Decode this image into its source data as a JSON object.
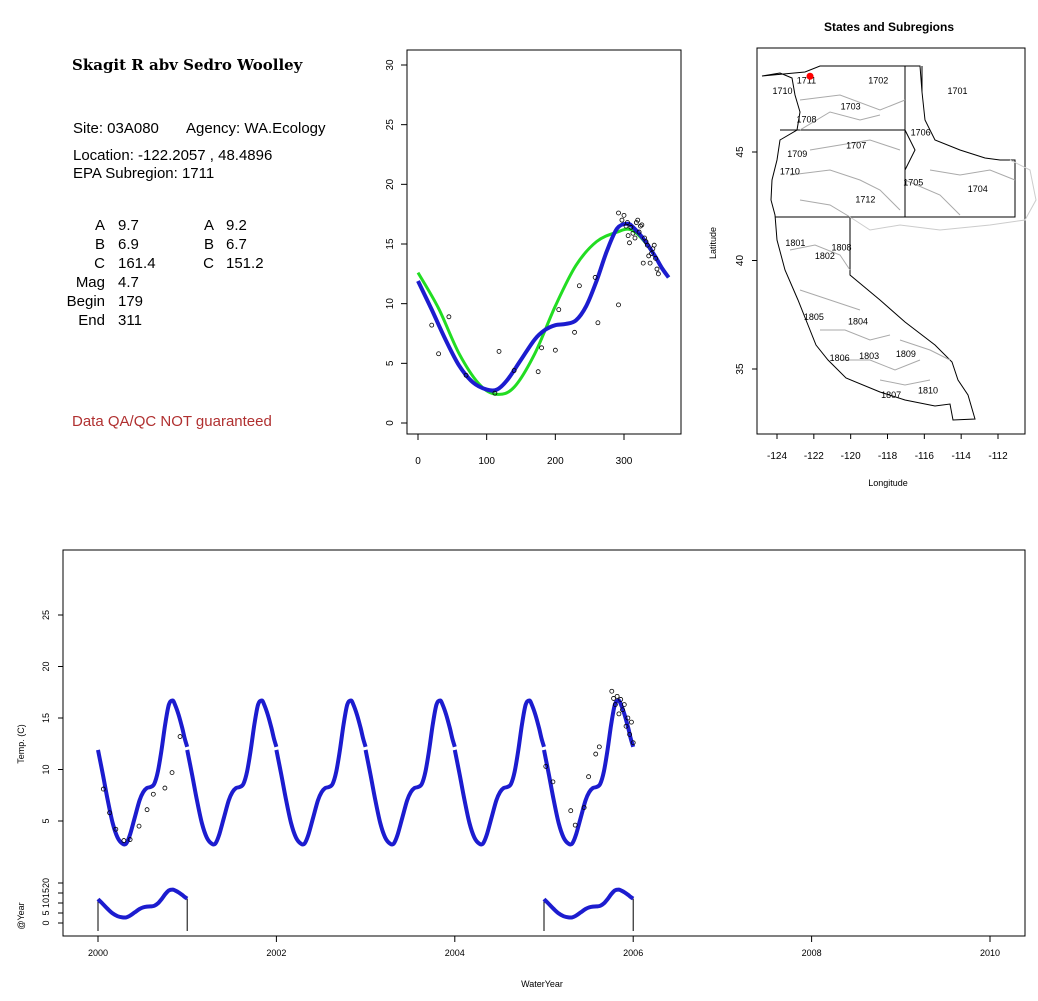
{
  "site": {
    "name": "Skagit R abv Sedro Woolley",
    "site_label": "Site: 03A080",
    "agency_label": "Agency: WA.Ecology",
    "location_label": "Location: -122.2057 , 48.4896",
    "subregion_label": "EPA Subregion: 1711"
  },
  "params": {
    "left": [
      {
        "label": "A",
        "value": "9.7"
      },
      {
        "label": "B",
        "value": "6.9"
      },
      {
        "label": "C",
        "value": "161.4"
      },
      {
        "label": "Mag",
        "value": "4.7"
      },
      {
        "label": "Begin",
        "value": "179"
      },
      {
        "label": "End",
        "value": "311"
      }
    ],
    "right": [
      {
        "label": "A",
        "value": "9.2"
      },
      {
        "label": "B",
        "value": "6.7"
      },
      {
        "label": "C",
        "value": "151.2"
      }
    ]
  },
  "qa_notice": "Data QA/QC NOT guaranteed",
  "colors": {
    "blue_fit": "#1c1ccf",
    "green_fit": "#22dd22",
    "qa_text": "#b03030",
    "station": "#ff0000"
  },
  "chart_data": [
    {
      "type": "scatter",
      "title": "",
      "xlim": [
        0,
        365
      ],
      "ylim": [
        0,
        30
      ],
      "xticks": [
        0,
        100,
        200,
        300
      ],
      "yticks": [
        0,
        5,
        10,
        15,
        20,
        25,
        30
      ],
      "points": [
        [
          20,
          8.2
        ],
        [
          30,
          5.8
        ],
        [
          45,
          8.9
        ],
        [
          70,
          4.0
        ],
        [
          112,
          2.5
        ],
        [
          118,
          6.0
        ],
        [
          140,
          4.4
        ],
        [
          175,
          4.3
        ],
        [
          180,
          6.3
        ],
        [
          200,
          6.1
        ],
        [
          205,
          9.5
        ],
        [
          228,
          7.6
        ],
        [
          235,
          11.5
        ],
        [
          258,
          12.2
        ],
        [
          262,
          8.4
        ],
        [
          292,
          9.9
        ],
        [
          292,
          17.6
        ],
        [
          297,
          17.0
        ],
        [
          300,
          17.4
        ],
        [
          303,
          16.5
        ],
        [
          305,
          16.8
        ],
        [
          306,
          15.7
        ],
        [
          308,
          15.1
        ],
        [
          310,
          16.4
        ],
        [
          313,
          15.9
        ],
        [
          316,
          15.5
        ],
        [
          318,
          16.8
        ],
        [
          320,
          17.0
        ],
        [
          322,
          16.0
        ],
        [
          324,
          16.5
        ],
        [
          326,
          16.6
        ],
        [
          328,
          13.4
        ],
        [
          330,
          15.5
        ],
        [
          332,
          15.2
        ],
        [
          334,
          14.9
        ],
        [
          336,
          14.0
        ],
        [
          338,
          13.4
        ],
        [
          340,
          14.2
        ],
        [
          342,
          14.6
        ],
        [
          344,
          14.9
        ],
        [
          346,
          13.8
        ],
        [
          348,
          12.9
        ],
        [
          350,
          12.5
        ]
      ],
      "series": [
        {
          "name": "",
          "color": "#22dd22",
          "x": [
            0,
            30,
            60,
            90,
            115,
            140,
            170,
            200,
            230,
            260,
            290,
            310,
            330,
            350,
            365
          ],
          "y": [
            12.6,
            9.6,
            5.8,
            3.2,
            2.4,
            3.0,
            5.8,
            9.8,
            13.2,
            15.2,
            16.0,
            16.2,
            15.2,
            13.5,
            12.2
          ]
        },
        {
          "name": "",
          "color": "#1c1ccf",
          "x": [
            0,
            20,
            40,
            60,
            80,
            100,
            115,
            130,
            150,
            170,
            185,
            200,
            215,
            230,
            245,
            260,
            275,
            290,
            305,
            315,
            330,
            345,
            355,
            365
          ],
          "y": [
            11.9,
            9.5,
            7.0,
            4.8,
            3.4,
            2.8,
            2.8,
            3.6,
            5.3,
            7.0,
            7.8,
            8.2,
            8.3,
            8.6,
            9.8,
            11.9,
            14.4,
            16.3,
            16.7,
            16.3,
            15.3,
            14.0,
            13.0,
            12.2
          ]
        }
      ]
    },
    {
      "type": "map",
      "title": "States and Subregions",
      "xlabel": "Longitude",
      "ylabel": "Latitude",
      "xlim": [
        -125.5,
        -110.5
      ],
      "ylim": [
        32.2,
        49.5
      ],
      "xticks": [
        -124,
        -122,
        -120,
        -118,
        -116,
        -114,
        -112
      ],
      "yticks": [
        35,
        40,
        45
      ],
      "station": {
        "lon": -122.2057,
        "lat": 48.4896
      },
      "regions": [
        {
          "label": "1702",
          "lon": -118.5,
          "lat": 48.3
        },
        {
          "label": "1711",
          "lon": -122.4,
          "lat": 48.3
        },
        {
          "label": "1701",
          "lon": -114.2,
          "lat": 47.8
        },
        {
          "label": "1710",
          "lon": -123.7,
          "lat": 47.8
        },
        {
          "label": "1703",
          "lon": -120.0,
          "lat": 47.1
        },
        {
          "label": "1708",
          "lon": -122.4,
          "lat": 46.5
        },
        {
          "label": "1706",
          "lon": -116.2,
          "lat": 45.9
        },
        {
          "label": "1707",
          "lon": -119.7,
          "lat": 45.3
        },
        {
          "label": "1709",
          "lon": -122.9,
          "lat": 44.9
        },
        {
          "label": "1710",
          "lon": -123.3,
          "lat": 44.1
        },
        {
          "label": "1705",
          "lon": -116.6,
          "lat": 43.6
        },
        {
          "label": "1704",
          "lon": -113.1,
          "lat": 43.3
        },
        {
          "label": "1712",
          "lon": -119.2,
          "lat": 42.8
        },
        {
          "label": "1801",
          "lon": -123.0,
          "lat": 40.8
        },
        {
          "label": "1808",
          "lon": -120.5,
          "lat": 40.6
        },
        {
          "label": "1802",
          "lon": -121.4,
          "lat": 40.2
        },
        {
          "label": "1805",
          "lon": -122.0,
          "lat": 37.4
        },
        {
          "label": "1804",
          "lon": -119.6,
          "lat": 37.2
        },
        {
          "label": "1809",
          "lon": -117.0,
          "lat": 35.7
        },
        {
          "label": "1806",
          "lon": -120.6,
          "lat": 35.5
        },
        {
          "label": "1803",
          "lon": -119.0,
          "lat": 35.6
        },
        {
          "label": "1810",
          "lon": -115.8,
          "lat": 34.0
        },
        {
          "label": "1807",
          "lon": -117.8,
          "lat": 33.8
        }
      ]
    },
    {
      "type": "line",
      "xlabel": "WaterYear",
      "ylabel": "Temp. (C)",
      "ylabel2": "@Year",
      "xlim": [
        1999.6,
        2010.4
      ],
      "xticks": [
        2000,
        2002,
        2004,
        2006,
        2008,
        2010
      ],
      "ylim": [
        0,
        30
      ],
      "yticks": [
        5,
        10,
        15,
        20,
        25
      ],
      "yticks2": [
        0,
        5,
        10,
        15,
        20
      ],
      "model_years": [
        2000,
        2001,
        2002,
        2003,
        2004,
        2005
      ],
      "points": [
        [
          2000.06,
          8.1
        ],
        [
          2000.13,
          5.8
        ],
        [
          2000.2,
          4.2
        ],
        [
          2000.29,
          3.1
        ],
        [
          2000.36,
          3.2
        ],
        [
          2000.46,
          4.5
        ],
        [
          2000.55,
          6.1
        ],
        [
          2000.62,
          7.6
        ],
        [
          2000.75,
          8.2
        ],
        [
          2000.83,
          9.7
        ],
        [
          2000.92,
          13.2
        ],
        [
          2005.02,
          10.3
        ],
        [
          2005.1,
          8.8
        ],
        [
          2005.3,
          6.0
        ],
        [
          2005.35,
          4.6
        ],
        [
          2005.45,
          6.3
        ],
        [
          2005.5,
          9.3
        ],
        [
          2005.58,
          11.5
        ],
        [
          2005.62,
          12.2
        ],
        [
          2005.76,
          17.6
        ],
        [
          2005.78,
          16.9
        ],
        [
          2005.8,
          16.3
        ],
        [
          2005.82,
          17.1
        ],
        [
          2005.84,
          15.4
        ],
        [
          2005.86,
          16.8
        ],
        [
          2005.88,
          15.8
        ],
        [
          2005.9,
          16.3
        ],
        [
          2005.92,
          14.2
        ],
        [
          2005.94,
          15.0
        ],
        [
          2005.96,
          13.4
        ],
        [
          2005.98,
          14.6
        ],
        [
          2006.0,
          12.6
        ]
      ],
      "annual_panels": [
        {
          "year": 2000,
          "y_at_start": 11.9,
          "y_at_end": 12.2
        },
        {
          "year": 2005,
          "y_at_start": 11.9,
          "y_at_end": 12.2
        }
      ]
    }
  ]
}
